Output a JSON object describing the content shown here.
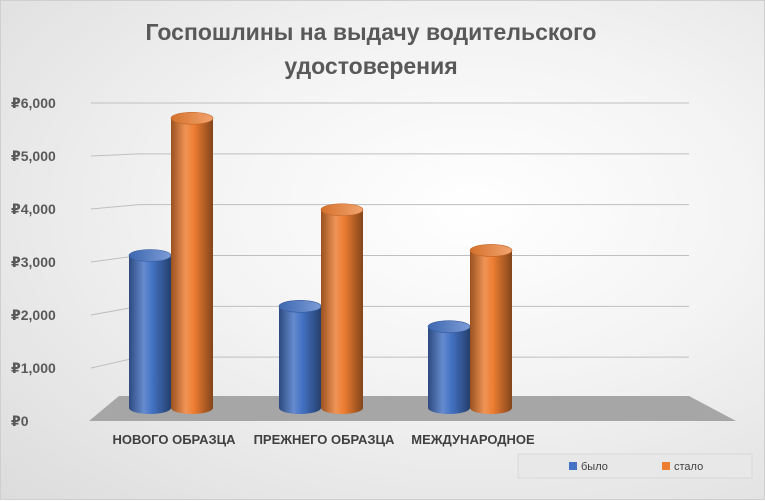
{
  "chart_data": {
    "type": "bar",
    "title": "Госпошлины на выдачу водительского удостоверения",
    "categories": [
      "НОВОГО ОБРАЗЦА",
      "ПРЕЖНЕГО ОБРАЗЦА",
      "МЕЖДУНАРОДНОЕ"
    ],
    "series": [
      {
        "name": "было",
        "color": "#4472c4",
        "values": [
          3000,
          2000,
          1600
        ]
      },
      {
        "name": "стало",
        "color": "#ed7d31",
        "values": [
          5700,
          3900,
          3100
        ]
      }
    ],
    "ylim": [
      0,
      6000
    ],
    "yticks": [
      "₽0",
      "₽1,000",
      "₽2,000",
      "₽3,000",
      "₽4,000",
      "₽5,000",
      "₽6,000"
    ],
    "ytick_values": [
      0,
      1000,
      2000,
      3000,
      4000,
      5000,
      6000
    ],
    "grid": true,
    "legend_position": "bottom-right",
    "style": "3d-cylinder"
  }
}
